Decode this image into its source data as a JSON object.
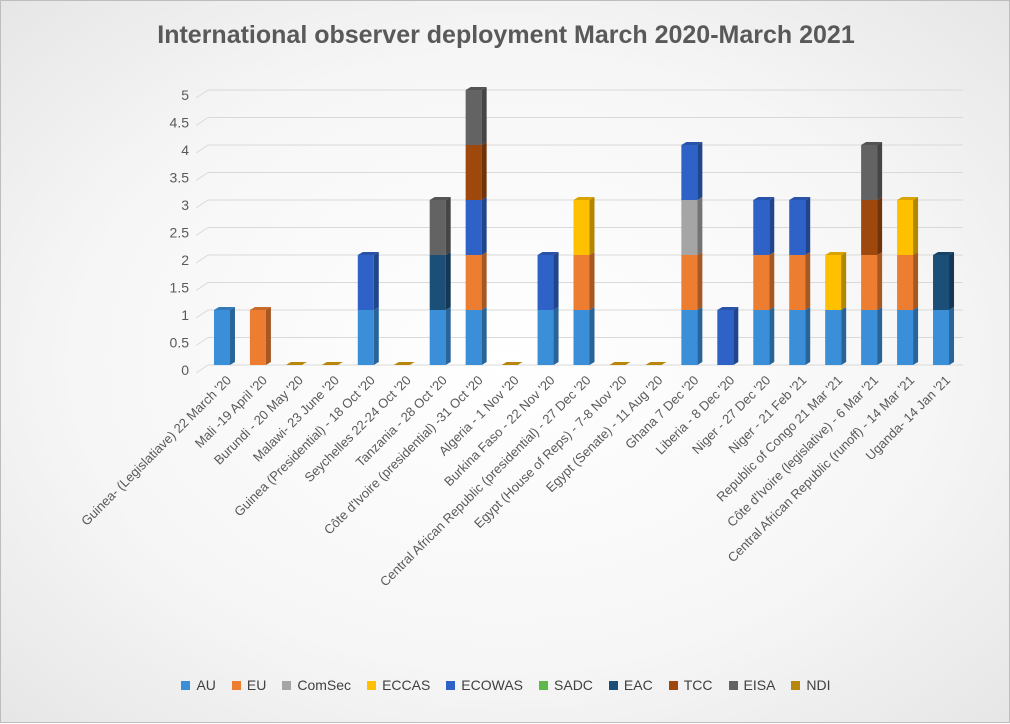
{
  "chart_data": {
    "type": "bar",
    "stacked": true,
    "title": "International observer deployment March 2020-March 2021",
    "xlabel": "",
    "ylabel": "",
    "ylim": [
      0,
      5
    ],
    "yticks": [
      "0",
      "0.5",
      "1",
      "1.5",
      "2",
      "2.5",
      "3",
      "3.5",
      "4",
      "4.5",
      "5"
    ],
    "grid": true,
    "legend_position": "bottom",
    "categories": [
      "Guinea- (Legislatiave) 22 March '20",
      "Mali -19 April '20",
      "Burundi - 20 May '20",
      "Malawi- 23 June '20",
      "Guinea (Presidential) - 18 Oct '20",
      "Seychelles 22-24 Oct '20",
      "Tanzania - 28 Oct '20",
      "Côte d'Ivoire (presidential) -31 Oct '20",
      "Algeria - 1 Nov '20",
      "Burkina Faso - 22 Nov '20",
      "Central African Republic (presidential) - 27 Dec '20",
      "Egypt (House of Reps) - 7-8 Nov '20",
      "Egypt (Senate) - 11 Aug '20",
      "Ghana 7 Dec '20",
      "Liberia - 8 Dec '20",
      "Niger - 27 Dec '20",
      "Niger - 21 Feb '21",
      "Republic of Congo 21 Mar '21",
      "Côte d'Ivoire (legislative) - 6 Mar '21",
      "Central African Republic (runoff) - 14 Mar '21",
      "Uganda- 14 Jan '21"
    ],
    "series": [
      {
        "name": "AU",
        "color": "#3b8fd9",
        "values": [
          1,
          0,
          0,
          0,
          1,
          0,
          1,
          1,
          0,
          1,
          1,
          0,
          0,
          1,
          0,
          1,
          1,
          1,
          1,
          1,
          1
        ]
      },
      {
        "name": "EU",
        "color": "#ed7d31",
        "values": [
          0,
          1,
          0,
          0,
          0,
          0,
          0,
          1,
          0,
          0,
          1,
          0,
          0,
          1,
          0,
          1,
          1,
          0,
          1,
          1,
          0
        ]
      },
      {
        "name": "ComSec",
        "color": "#a5a5a5",
        "values": [
          0,
          0,
          0,
          0,
          0,
          0,
          0,
          0,
          0,
          0,
          0,
          0,
          0,
          1,
          0,
          0,
          0,
          0,
          0,
          0,
          0
        ]
      },
      {
        "name": "ECCAS",
        "color": "#ffc000",
        "values": [
          0,
          0,
          0,
          0,
          0,
          0,
          0,
          0,
          0,
          0,
          1,
          0,
          0,
          0,
          0,
          0,
          0,
          1,
          0,
          1,
          0
        ]
      },
      {
        "name": "ECOWAS",
        "color": "#2f62c7",
        "values": [
          0,
          0,
          0,
          0,
          1,
          0,
          0,
          1,
          0,
          1,
          0,
          0,
          0,
          1,
          1,
          1,
          1,
          0,
          0,
          0,
          0
        ]
      },
      {
        "name": "SADC",
        "color": "#5eb84a",
        "values": [
          0,
          0,
          0,
          0,
          0,
          0,
          0,
          0,
          0,
          0,
          0,
          0,
          0,
          0,
          0,
          0,
          0,
          0,
          0,
          0,
          0
        ]
      },
      {
        "name": "EAC",
        "color": "#1b4f78",
        "values": [
          0,
          0,
          0,
          0,
          0,
          0,
          1,
          0,
          0,
          0,
          0,
          0,
          0,
          0,
          0,
          0,
          0,
          0,
          0,
          0,
          1
        ]
      },
      {
        "name": "TCC",
        "color": "#9e480e",
        "values": [
          0,
          0,
          0,
          0,
          0,
          0,
          0,
          1,
          0,
          0,
          0,
          0,
          0,
          0,
          0,
          0,
          0,
          0,
          1,
          0,
          0
        ]
      },
      {
        "name": "EISA",
        "color": "#636363",
        "values": [
          0,
          0,
          0,
          0,
          0,
          0,
          1,
          1,
          0,
          0,
          0,
          0,
          0,
          0,
          0,
          0,
          0,
          0,
          1,
          0,
          0
        ]
      },
      {
        "name": "NDI",
        "color": "#b8860b",
        "values": [
          0,
          0,
          0,
          0,
          0,
          0,
          0,
          0,
          0,
          0,
          0,
          0,
          0,
          0,
          0,
          0,
          0,
          0,
          0,
          0,
          0
        ]
      }
    ]
  }
}
